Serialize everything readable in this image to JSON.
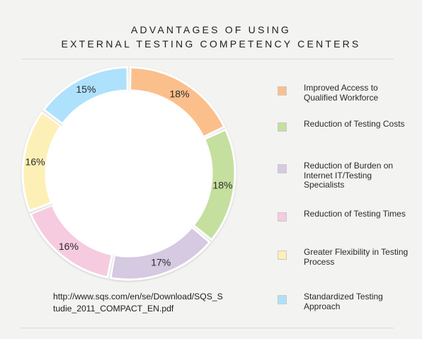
{
  "header": {
    "title_line1": "ADVANTAGES OF USING",
    "title_line2": "EXTERNAL TESTING COMPETENCY CENTERS"
  },
  "source": "http://www.sqs.com/en/se/Download/SQS_Studie_2011_COMPACT_EN.pdf",
  "chart_data": {
    "type": "pie",
    "title": "ADVANTAGES OF USING EXTERNAL TESTING COMPETENCY CENTERS",
    "donut": true,
    "legend_position": "right",
    "slices": [
      {
        "label": "Improved Access to Qualified Workforce",
        "value": 18,
        "display": "18%",
        "color": "#fbbf8c"
      },
      {
        "label": "Reduction of Testing Costs",
        "value": 18,
        "display": "18%",
        "color": "#c5df9e"
      },
      {
        "label": "Reduction of Burden on Internet IT/Testing Specialists",
        "value": 17,
        "display": "17%",
        "color": "#d6c9e2"
      },
      {
        "label": "Reduction of Testing Times",
        "value": 16,
        "display": "16%",
        "color": "#f6cbdf"
      },
      {
        "label": "Greater Flexibility in Testing Process",
        "value": 16,
        "display": "16%",
        "color": "#fdf0b7"
      },
      {
        "label": "Standardized Testing Approach",
        "value": 15,
        "display": "15%",
        "color": "#aee1fb"
      }
    ]
  }
}
